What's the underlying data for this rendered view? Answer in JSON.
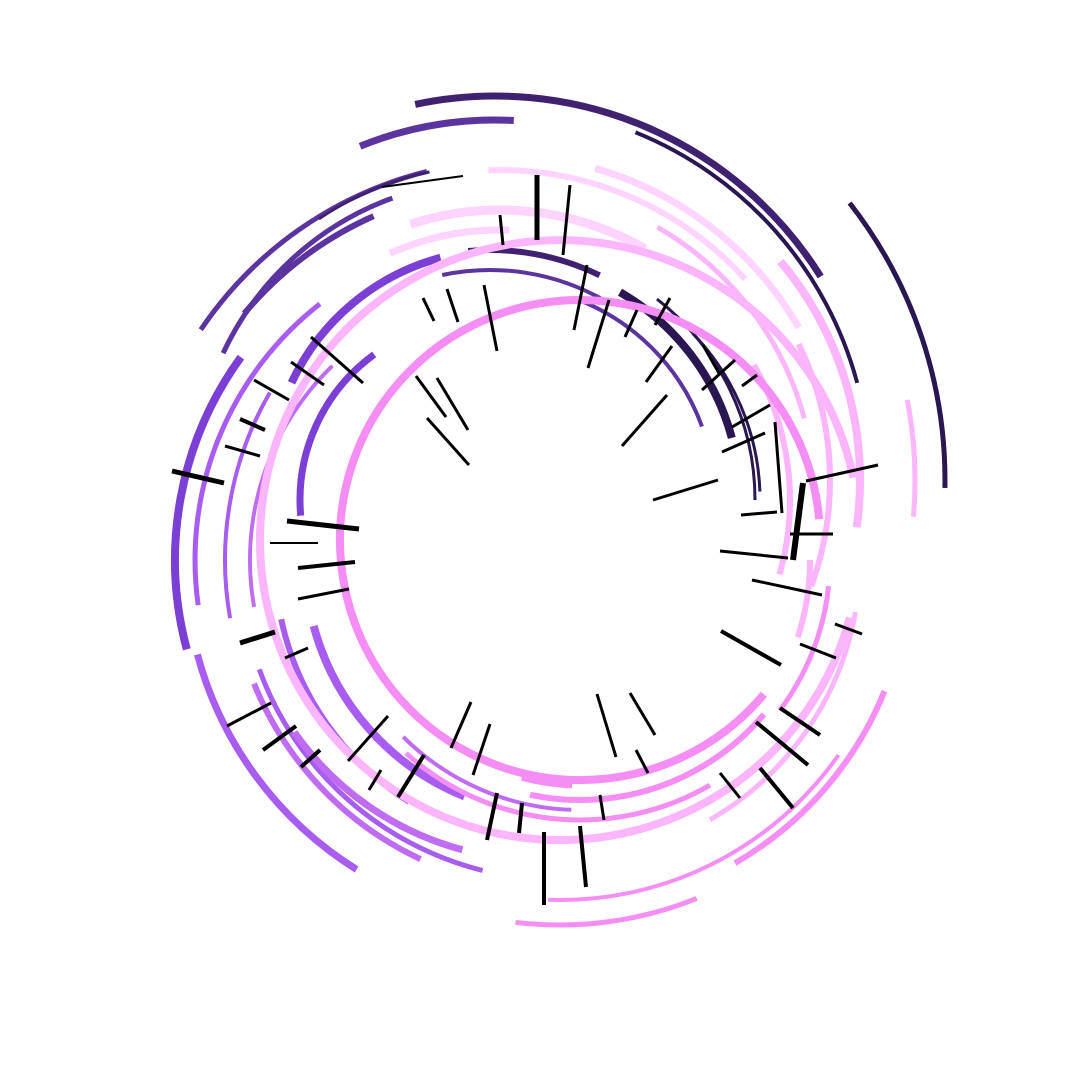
{
  "artwork": {
    "kind": "generative radial arc composition",
    "palette": {
      "background": "#ffffff",
      "tick": "#000000",
      "deep_indigo": "#2a1650",
      "indigo": "#3f2170",
      "violet": "#5b34a0",
      "purple": "#7b3fd6",
      "lavender": "#a85cf0",
      "orchid": "#c06cf2",
      "pink": "#f48ef5",
      "light_pink": "#fbb6fb",
      "blush": "#fdd4fd"
    }
  }
}
